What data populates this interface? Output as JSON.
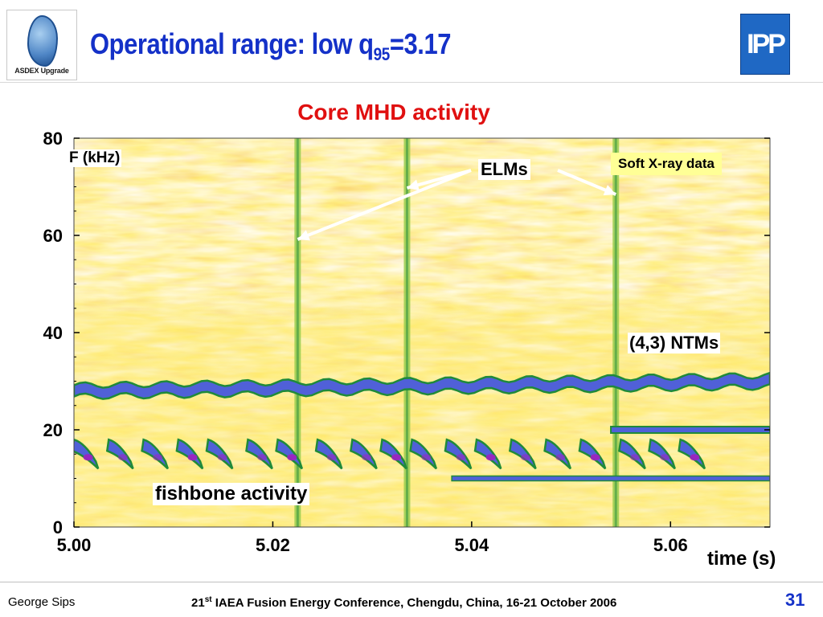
{
  "slide": {
    "title_main": "Operational range: low q",
    "title_sub": "95",
    "title_tail": "=3.17",
    "logo_left_caption": "ASDEX Upgrade",
    "logo_right_text": "IPP"
  },
  "footer": {
    "author": "George Sips",
    "conf_num": "21",
    "conf_sup": "st",
    "conf_rest": " IAEA Fusion Energy Conference, Chengdu, China, 16-21 October 2006",
    "page": "31"
  },
  "annotations": {
    "y_axis_label": "F (kHz)",
    "elms": "ELMs",
    "soft_xray": "Soft X-ray data",
    "ntm": "(4,3) NTMs",
    "fishbone": "fishbone activity",
    "x_axis_label": "time (s)"
  },
  "chart_data": {
    "type": "heatmap",
    "title": "Core MHD activity",
    "xlabel": "time (s)",
    "ylabel": "F (kHz)",
    "xlim": [
      5.0,
      5.07
    ],
    "ylim": [
      0,
      80
    ],
    "x_ticks": [
      "5.00",
      "5.02",
      "5.04",
      "5.06"
    ],
    "y_ticks": [
      "0",
      "20",
      "40",
      "60",
      "80"
    ],
    "grid": false,
    "colors": {
      "background": "#f4a21e",
      "high": "#8a1760",
      "mid": "#ffd21e",
      "low": "#9acd50",
      "mode": "#5060d8",
      "mode_peak": "#a020c0",
      "mode_edge": "#1f8a3a"
    },
    "features": [
      {
        "name": "ELMs",
        "t": [
          5.0225,
          5.0335,
          5.0545
        ]
      },
      {
        "name": "(4,3) NTMs",
        "t_start": 5.0,
        "t_end": 5.07,
        "f_khz": 28,
        "f_khz_late": 30
      },
      {
        "name": "NTM second harmonic",
        "t_start": 5.054,
        "t_end": 5.07,
        "f_khz": 20
      },
      {
        "name": "fishbone activity",
        "t_bursts": [
          5.0,
          5.0035,
          5.007,
          5.0105,
          5.0135,
          5.0175,
          5.0205,
          5.0245,
          5.028,
          5.031,
          5.034,
          5.0375,
          5.0405,
          5.044,
          5.0475,
          5.051,
          5.055,
          5.058,
          5.061
        ],
        "f_khz_start": 17,
        "f_khz_end": 10
      },
      {
        "name": "fishbone continuous mode",
        "t_start": 5.038,
        "t_end": 5.07,
        "f_khz": 10
      }
    ]
  }
}
